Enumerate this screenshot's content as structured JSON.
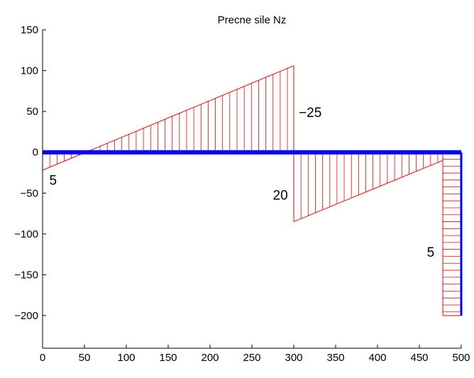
{
  "chart_data": {
    "type": "line",
    "title": "Precne sile Nz",
    "xlabel": "",
    "ylabel": "",
    "xlim": [
      0,
      500
    ],
    "ylim": [
      -240,
      150
    ],
    "x_ticks": [
      0,
      50,
      100,
      150,
      200,
      250,
      300,
      350,
      400,
      450,
      500
    ],
    "y_ticks": [
      150,
      100,
      50,
      0,
      -50,
      -100,
      -150,
      -200
    ],
    "grid": false,
    "colors": {
      "beam": "#0000ff",
      "diagram": "#ff0000",
      "axes": "#000000"
    },
    "beam": {
      "x": [
        0,
        500
      ],
      "y": [
        0,
        0
      ]
    },
    "diagram_segments": [
      {
        "x": [
          0,
          300
        ],
        "y": [
          -22,
          106
        ]
      },
      {
        "x": [
          300,
          478
        ],
        "y": [
          -85,
          -10
        ]
      },
      {
        "x": [
          478,
          500
        ],
        "y": [
          -200,
          -200
        ]
      }
    ],
    "hatch": [
      {
        "orientation": "vertical",
        "x_start": 0,
        "x_end": 300,
        "step": 8.6
      },
      {
        "orientation": "vertical",
        "x_start": 300,
        "x_end": 478,
        "step": 8.6
      },
      {
        "orientation": "horizontal",
        "y_start": 0,
        "y_end": -200,
        "step": 8.5
      }
    ],
    "annotations": [
      {
        "text": "5",
        "x": 8,
        "y": -40
      },
      {
        "text": "−25",
        "x": 306,
        "y": 43
      },
      {
        "text": "20",
        "x": 275,
        "y": -58
      },
      {
        "text": "5",
        "x": 459,
        "y": -128
      }
    ]
  }
}
